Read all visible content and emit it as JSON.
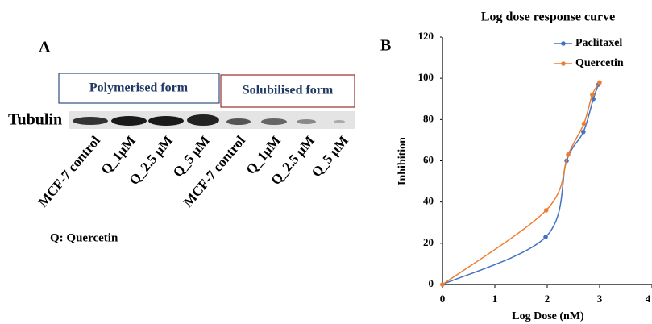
{
  "panel_a": {
    "label": "A",
    "polymerised": "Polymerised form",
    "solubilised": "Solubilised form",
    "protein": "Tubulin",
    "lanes": [
      "MCF-7 control",
      "Q_1µM",
      "Q_2.5 µM",
      "Q_5 µM",
      "MCF-7 control",
      "Q_1µM",
      "Q_2.5 µM",
      "Q_5 µM"
    ],
    "legend_note": "Q: Quercetin"
  },
  "chart_data": {
    "type": "line",
    "panel_label": "B",
    "title": "Log dose response curve",
    "x_label": "Log Dose (nM)",
    "y_label": "Inhibition",
    "series": [
      {
        "name": "Paclitaxel",
        "color": "#4472c4",
        "x": [
          0,
          1.97,
          2.37,
          2.69,
          2.88,
          2.98
        ],
        "values": [
          0,
          23,
          60,
          74,
          90,
          97
        ]
      },
      {
        "name": "Quercetin",
        "color": "#ed7d31",
        "x": [
          0,
          1.98,
          2.4,
          2.7,
          2.86,
          3
        ],
        "values": [
          0,
          36,
          63,
          78,
          92,
          98
        ]
      }
    ],
    "xlim": [
      0,
      4
    ],
    "xticks": [
      0,
      1,
      2,
      3,
      4
    ],
    "ylim": [
      0,
      120
    ],
    "yticks": [
      0,
      20,
      40,
      60,
      80,
      100,
      120
    ],
    "grid": false,
    "legend": "top-right"
  }
}
